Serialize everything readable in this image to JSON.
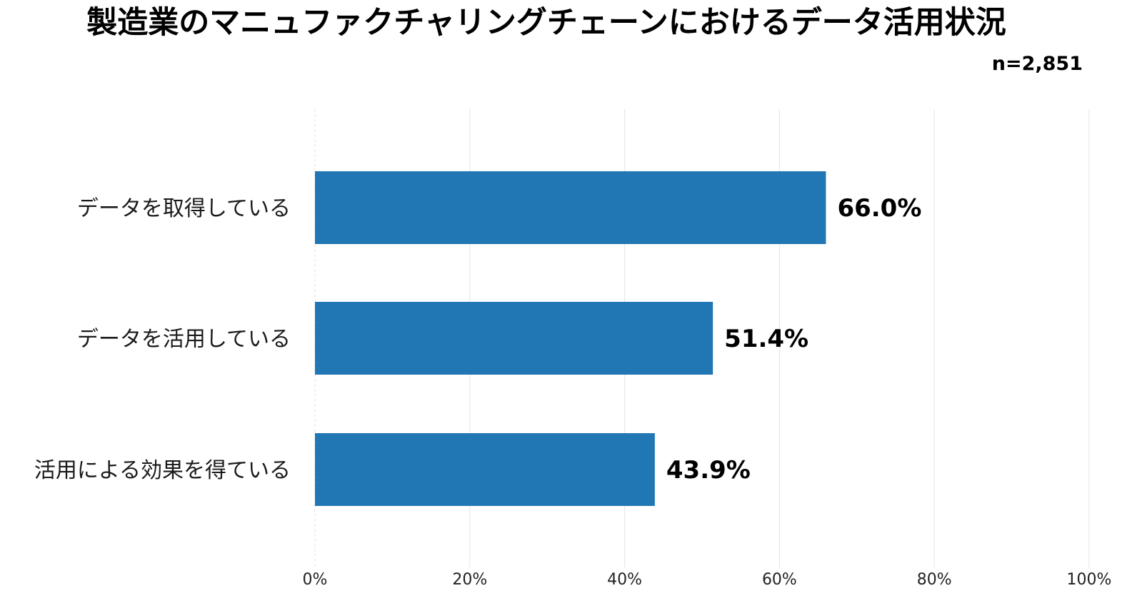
{
  "chart_data": {
    "type": "bar",
    "orientation": "horizontal",
    "title": "製造業のマニュファクチャリングチェーンにおけるデータ活用状況",
    "sample_size": "n=2,851",
    "categories": [
      "データを取得している",
      "データを活用している",
      "活用による効果を得ている"
    ],
    "values": [
      66.0,
      51.4,
      43.9
    ],
    "value_labels": [
      "66.0%",
      "51.4%",
      "43.9%"
    ],
    "xlim": [
      0,
      100
    ],
    "ticks": [
      0,
      20,
      40,
      60,
      80,
      100
    ],
    "tick_labels": [
      "0%",
      "20%",
      "40%",
      "60%",
      "80%",
      "100%"
    ],
    "xlabel": "",
    "ylabel": "",
    "grid": true,
    "legend": "none",
    "bar_color": "#2077b4",
    "grid_color": "#e3e3e3"
  }
}
